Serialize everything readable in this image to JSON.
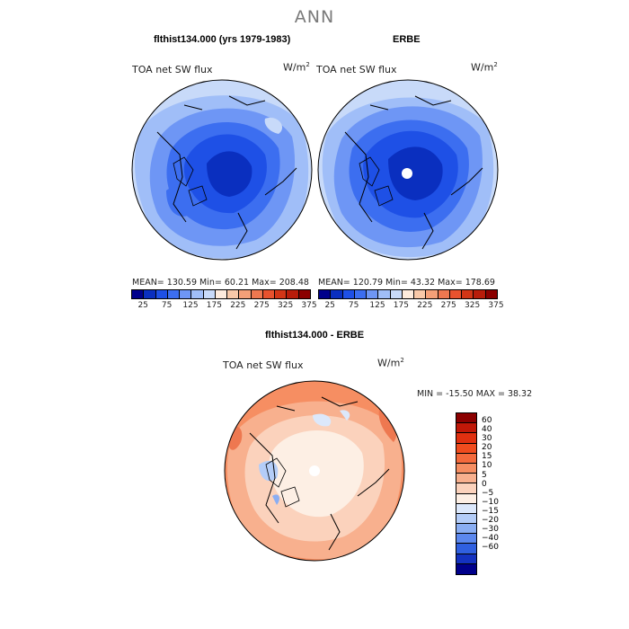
{
  "title": "ANN",
  "panels": {
    "model": {
      "title": "flthist134.000 (yrs 1979-1983)",
      "field": "TOA net SW flux",
      "units": "W/m",
      "units_sup": "2",
      "stats": "MEAN= 130.59   Min=  60.21   Max= 208.48"
    },
    "obs": {
      "title": "ERBE",
      "field": "TOA net SW flux",
      "units": "W/m",
      "units_sup": "2",
      "stats": "MEAN= 120.79   Min=  43.32   Max= 178.69"
    },
    "diff": {
      "title": "flthist134.000 - ERBE",
      "field": "TOA net SW flux",
      "units": "W/m",
      "units_sup": "2",
      "stats": "MIN = -15.50 MAX =  38.32"
    }
  },
  "colorbar_abs": {
    "labels": [
      "25",
      "75",
      "125",
      "175",
      "225",
      "275",
      "325",
      "375"
    ],
    "colors": [
      "#00008b",
      "#0a2fbf",
      "#1e50e6",
      "#3c6ef0",
      "#6e96f5",
      "#a0bef8",
      "#c8daf9",
      "#fdebdd",
      "#f8c8a8",
      "#f4a078",
      "#ee7850",
      "#e8522e",
      "#d23516",
      "#b81c0a",
      "#8b0000"
    ]
  },
  "colorbar_diff": {
    "labels": [
      "60",
      "40",
      "30",
      "20",
      "15",
      "10",
      "5",
      "0",
      "−5",
      "−10",
      "−15",
      "−20",
      "−30",
      "−40",
      "−60"
    ],
    "colors": [
      "#8b0000",
      "#c01808",
      "#e03010",
      "#f04c1e",
      "#f46a3c",
      "#f68e62",
      "#f8b08e",
      "#fbd2bc",
      "#fdefe4",
      "#dce8fb",
      "#b4cdf8",
      "#8aaef3",
      "#5c88ee",
      "#3060e0",
      "#1432c0",
      "#00008b"
    ]
  }
}
